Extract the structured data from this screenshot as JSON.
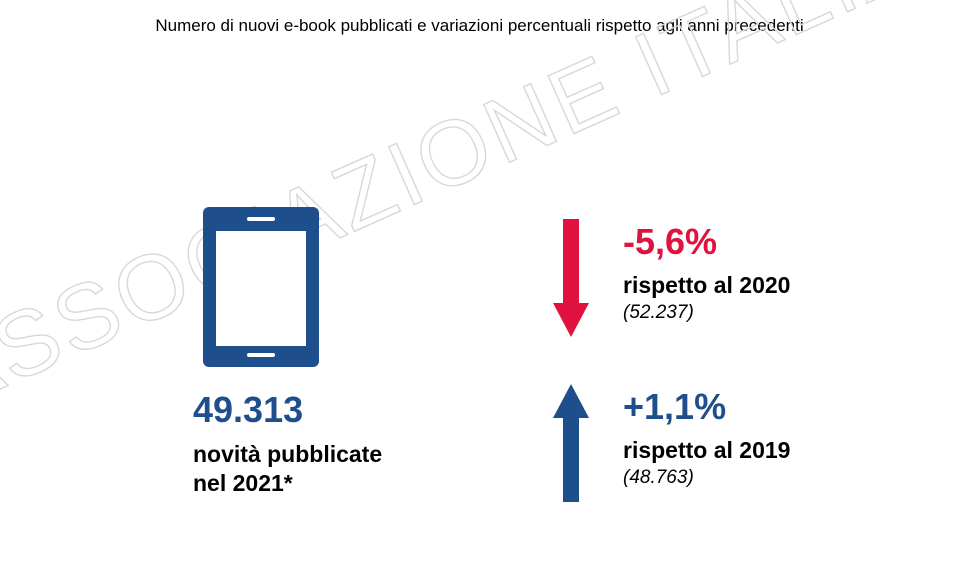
{
  "title": "Numero di nuovi e-book pubblicati e variazioni percentuali rispetto agli anni precedenti",
  "watermark": "ASSOCIAZIONE ITALIANA EDITORI",
  "colors": {
    "blue": "#1f4e8c",
    "red": "#e0123f",
    "text": "#000000"
  },
  "main_stat": {
    "icon": "tablet-icon",
    "value": "49.313",
    "label_line1": "novità pubblicate",
    "label_line2": "nel 2021*"
  },
  "change_2020": {
    "icon": "arrow-down-icon",
    "percent": "-5,6%",
    "reference": "rispetto al 2020",
    "previous_value": "(52.237)"
  },
  "change_2019": {
    "icon": "arrow-up-icon",
    "percent": "+1,1%",
    "reference": "rispetto al 2019",
    "previous_value": "(48.763)"
  }
}
